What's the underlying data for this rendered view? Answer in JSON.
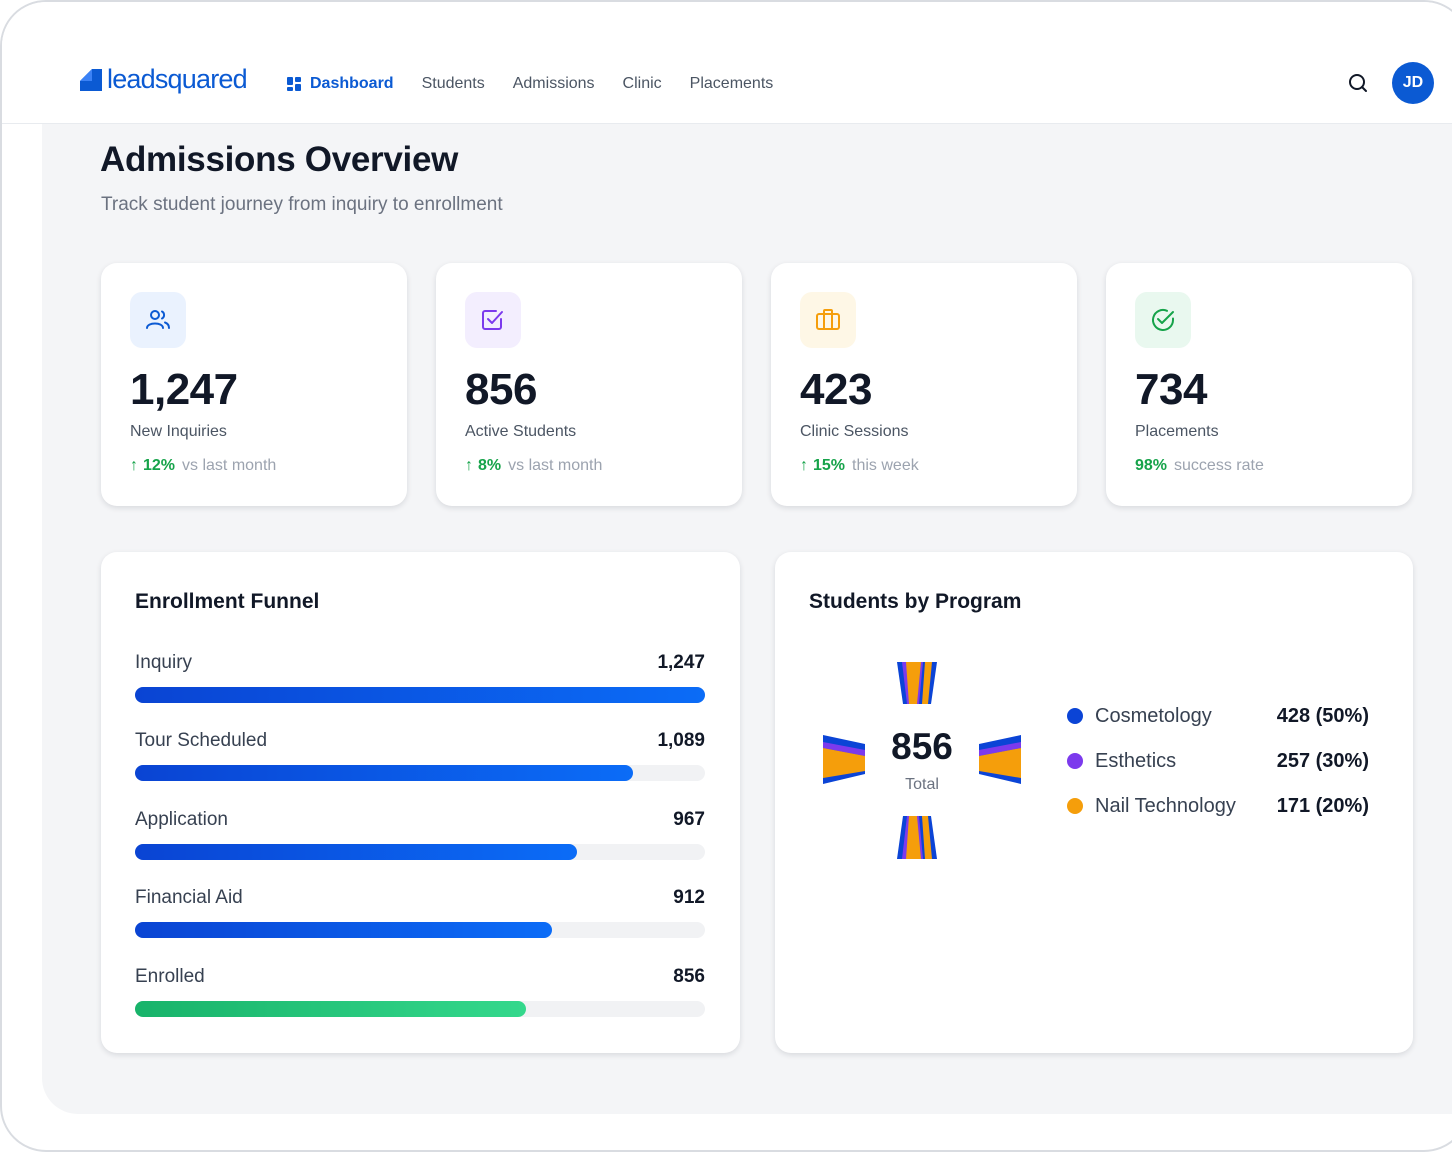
{
  "brand": {
    "name": "leadsquared",
    "color": "#0b5ad3"
  },
  "nav": {
    "items": [
      {
        "label": "Dashboard",
        "active": true,
        "icon": "dashboard-grid-icon"
      },
      {
        "label": "Students",
        "active": false
      },
      {
        "label": "Admissions",
        "active": false
      },
      {
        "label": "Clinic",
        "active": false
      },
      {
        "label": "Placements",
        "active": false
      }
    ],
    "search_icon": "search-icon",
    "avatar_initials": "JD"
  },
  "header": {
    "title": "Admissions Overview",
    "subtitle": "Track student journey from inquiry to enrollment"
  },
  "stats": [
    {
      "icon": "users-icon",
      "icon_color": "#0b5ad3",
      "icon_bg": "#eaf2fe",
      "value": "1,247",
      "label": "New Inquiries",
      "trend_arrow": "↑",
      "trend_value": "12%",
      "trend_text": "vs last month"
    },
    {
      "icon": "checkbox-icon",
      "icon_color": "#7c3aed",
      "icon_bg": "#f3eefe",
      "value": "856",
      "label": "Active Students",
      "trend_arrow": "↑",
      "trend_value": "8%",
      "trend_text": "vs last month"
    },
    {
      "icon": "briefcase-icon",
      "icon_color": "#f59e0b",
      "icon_bg": "#fef7e6",
      "value": "423",
      "label": "Clinic Sessions",
      "trend_arrow": "↑",
      "trend_value": "15%",
      "trend_text": "this week"
    },
    {
      "icon": "check-circle-icon",
      "icon_color": "#16a34a",
      "icon_bg": "#e9f8ef",
      "value": "734",
      "label": "Placements",
      "trend_arrow": "",
      "trend_value": "98%",
      "trend_text": "success rate"
    }
  ],
  "funnel": {
    "title": "Enrollment Funnel",
    "max": 1247,
    "stages": [
      {
        "label": "Inquiry",
        "value_text": "1,247",
        "value": 1247,
        "color": "blue"
      },
      {
        "label": "Tour Scheduled",
        "value_text": "1,089",
        "value": 1089,
        "color": "blue"
      },
      {
        "label": "Application",
        "value_text": "967",
        "value": 967,
        "color": "blue"
      },
      {
        "label": "Financial Aid",
        "value_text": "912",
        "value": 912,
        "color": "blue"
      },
      {
        "label": "Enrolled",
        "value_text": "856",
        "value": 856,
        "color": "green"
      }
    ]
  },
  "programs": {
    "title": "Students by Program",
    "total": "856",
    "total_label": "Total",
    "items": [
      {
        "label": "Cosmetology",
        "value": "428 (50%)",
        "color": "#0b44d6"
      },
      {
        "label": "Esthetics",
        "value": "257 (30%)",
        "color": "#7c3aed"
      },
      {
        "label": "Nail Technology",
        "value": "171 (20%)",
        "color": "#f59e0b"
      }
    ]
  }
}
